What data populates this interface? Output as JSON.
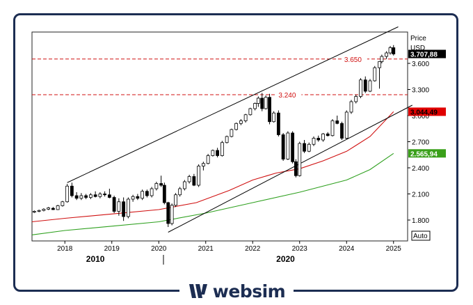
{
  "brand": {
    "name": "websim",
    "logo_icon": "websim-w-logo-icon"
  },
  "colors": {
    "frame": "#1c2d52",
    "candle": "#000000",
    "ma_fast": "#d01010",
    "ma_slow": "#2ea01e",
    "level": "#d01010",
    "last_tag": "#000000",
    "ma_fast_tag": "#e00000",
    "ma_slow_tag": "#3aa01a"
  },
  "chart_data": {
    "type": "candlestick",
    "x_unit": "year",
    "xlim": [
      2017.3,
      2025.3
    ],
    "ylim": [
      1560,
      3960
    ],
    "y_axis": {
      "title": "Price",
      "unit": "USD",
      "ticks": [
        1800,
        2100,
        2400,
        2700,
        3000,
        3300,
        3600
      ],
      "tick_labels": [
        "1.800",
        "2.100",
        "2.400",
        "2.700",
        "3.000",
        "3.300",
        "3.600"
      ]
    },
    "x_axis": {
      "ticks": [
        2018,
        2019,
        2020,
        2021,
        2022,
        2023,
        2024,
        2025
      ],
      "tick_labels": [
        "2018",
        "2019",
        "2020",
        "2021",
        "2022",
        "2023",
        "2024",
        "2025"
      ]
    },
    "era_labels": [
      {
        "text": "2010",
        "x": 2018.65
      },
      {
        "text": "2020",
        "x": 2022.7
      }
    ],
    "era_divider_x": 2020.1,
    "grid": false,
    "scale_button": "Auto",
    "candles": [
      [
        2017.35,
        1890,
        1910,
        1880,
        1900
      ],
      [
        2017.45,
        1900,
        1920,
        1890,
        1910
      ],
      [
        2017.55,
        1910,
        1935,
        1900,
        1925
      ],
      [
        2017.65,
        1925,
        1950,
        1915,
        1940
      ],
      [
        2017.75,
        1935,
        1950,
        1915,
        1920
      ],
      [
        2017.85,
        1920,
        1975,
        1915,
        1965
      ],
      [
        2017.95,
        1965,
        2020,
        1955,
        2010
      ],
      [
        2018.05,
        2010,
        2215,
        2000,
        2190
      ],
      [
        2018.15,
        2190,
        2230,
        2060,
        2080
      ],
      [
        2018.25,
        2080,
        2120,
        2030,
        2050
      ],
      [
        2018.35,
        2050,
        2110,
        2030,
        2080
      ],
      [
        2018.45,
        2080,
        2100,
        2040,
        2060
      ],
      [
        2018.55,
        2060,
        2110,
        2040,
        2090
      ],
      [
        2018.65,
        2090,
        2130,
        2060,
        2070
      ],
      [
        2018.75,
        2070,
        2120,
        2050,
        2100
      ],
      [
        2018.85,
        2100,
        2130,
        2070,
        2090
      ],
      [
        2018.95,
        2090,
        2160,
        2050,
        2060
      ],
      [
        2019.05,
        2060,
        2080,
        1880,
        1900
      ],
      [
        2019.15,
        1900,
        2050,
        1850,
        2010
      ],
      [
        2019.25,
        2010,
        2060,
        1790,
        1840
      ],
      [
        2019.35,
        1840,
        2060,
        1820,
        2040
      ],
      [
        2019.45,
        2040,
        2090,
        2010,
        2070
      ],
      [
        2019.55,
        2070,
        2100,
        2030,
        2050
      ],
      [
        2019.65,
        2050,
        2150,
        2030,
        2130
      ],
      [
        2019.75,
        2130,
        2150,
        2060,
        2080
      ],
      [
        2019.85,
        2080,
        2180,
        2060,
        2160
      ],
      [
        2019.95,
        2160,
        2240,
        2140,
        2220
      ],
      [
        2020.05,
        2220,
        2310,
        2180,
        2200
      ],
      [
        2020.12,
        2200,
        2230,
        1980,
        2000
      ],
      [
        2020.2,
        2000,
        2010,
        1720,
        1760
      ],
      [
        2020.28,
        1760,
        1990,
        1740,
        1970
      ],
      [
        2020.36,
        1970,
        2110,
        1950,
        2090
      ],
      [
        2020.45,
        2090,
        2180,
        2070,
        2160
      ],
      [
        2020.55,
        2160,
        2260,
        2140,
        2240
      ],
      [
        2020.65,
        2240,
        2320,
        2220,
        2300
      ],
      [
        2020.75,
        2300,
        2330,
        2190,
        2200
      ],
      [
        2020.85,
        2200,
        2440,
        2180,
        2420
      ],
      [
        2020.95,
        2420,
        2470,
        2370,
        2450
      ],
      [
        2021.05,
        2450,
        2560,
        2440,
        2540
      ],
      [
        2021.15,
        2540,
        2610,
        2530,
        2600
      ],
      [
        2021.25,
        2600,
        2630,
        2520,
        2540
      ],
      [
        2021.35,
        2540,
        2710,
        2530,
        2690
      ],
      [
        2021.45,
        2690,
        2770,
        2680,
        2760
      ],
      [
        2021.55,
        2760,
        2850,
        2750,
        2840
      ],
      [
        2021.65,
        2840,
        2920,
        2830,
        2910
      ],
      [
        2021.75,
        2910,
        2960,
        2890,
        2940
      ],
      [
        2021.85,
        2940,
        3020,
        2920,
        3010
      ],
      [
        2021.95,
        3010,
        3090,
        3000,
        3080
      ],
      [
        2022.05,
        3080,
        3150,
        3060,
        3140
      ],
      [
        2022.12,
        3140,
        3220,
        3100,
        3200
      ],
      [
        2022.2,
        3200,
        3260,
        3050,
        3080
      ],
      [
        2022.28,
        3080,
        3230,
        3070,
        3210
      ],
      [
        2022.36,
        3210,
        3250,
        2900,
        2930
      ],
      [
        2022.45,
        2930,
        3050,
        2920,
        3030
      ],
      [
        2022.55,
        3030,
        3060,
        2760,
        2780
      ],
      [
        2022.65,
        2780,
        2800,
        2480,
        2500
      ],
      [
        2022.75,
        2500,
        2820,
        2490,
        2800
      ],
      [
        2022.85,
        2800,
        2820,
        2450,
        2470
      ],
      [
        2022.92,
        2470,
        2500,
        2290,
        2310
      ],
      [
        2023.0,
        2310,
        2700,
        2300,
        2680
      ],
      [
        2023.1,
        2680,
        2720,
        2570,
        2590
      ],
      [
        2023.2,
        2590,
        2690,
        2580,
        2670
      ],
      [
        2023.3,
        2670,
        2760,
        2650,
        2740
      ],
      [
        2023.4,
        2740,
        2770,
        2700,
        2720
      ],
      [
        2023.5,
        2720,
        2800,
        2700,
        2790
      ],
      [
        2023.6,
        2790,
        2810,
        2760,
        2770
      ],
      [
        2023.7,
        2770,
        2960,
        2760,
        2940
      ],
      [
        2023.8,
        2940,
        3000,
        2900,
        2910
      ],
      [
        2023.9,
        2910,
        2930,
        2720,
        2740
      ],
      [
        2024.0,
        2740,
        3060,
        2730,
        3040
      ],
      [
        2024.1,
        3040,
        3180,
        3020,
        3160
      ],
      [
        2024.2,
        3160,
        3240,
        3140,
        3220
      ],
      [
        2024.3,
        3220,
        3430,
        3200,
        3410
      ],
      [
        2024.4,
        3410,
        3450,
        3260,
        3280
      ],
      [
        2024.5,
        3280,
        3420,
        3270,
        3400
      ],
      [
        2024.6,
        3400,
        3570,
        3390,
        3550
      ],
      [
        2024.7,
        3550,
        3600,
        3310,
        3620
      ],
      [
        2024.75,
        3620,
        3700,
        3600,
        3680
      ],
      [
        2024.85,
        3680,
        3740,
        3650,
        3720
      ],
      [
        2024.93,
        3720,
        3800,
        3700,
        3780
      ],
      [
        2025.0,
        3780,
        3810,
        3690,
        3707.88
      ]
    ],
    "series": [
      {
        "line_type": "moving-average",
        "color": "#d01010",
        "last_value": 3044.49,
        "last_label": "3.044,49",
        "x": [
          2017.3,
          2018.0,
          2019.0,
          2020.0,
          2020.8,
          2021.5,
          2022.0,
          2022.5,
          2023.0,
          2023.5,
          2024.0,
          2024.5,
          2025.0
        ],
        "y": [
          1780,
          1820,
          1870,
          1920,
          2000,
          2140,
          2260,
          2340,
          2390,
          2480,
          2590,
          2760,
          3044.49
        ]
      },
      {
        "line_type": "moving-average",
        "color": "#2ea01e",
        "last_value": 2565.94,
        "last_label": "2.565,94",
        "x": [
          2017.3,
          2018.0,
          2019.0,
          2020.0,
          2021.0,
          2022.0,
          2023.0,
          2024.0,
          2024.5,
          2025.0
        ],
        "y": [
          1630,
          1680,
          1730,
          1780,
          1880,
          2000,
          2120,
          2260,
          2380,
          2565.94
        ]
      }
    ],
    "trend_lines": [
      {
        "x1": 2018.05,
        "y1": 2230,
        "x2": 2025.1,
        "y2": 4020
      },
      {
        "x1": 2020.2,
        "y1": 1660,
        "x2": 2025.4,
        "y2": 3120
      }
    ],
    "levels": [
      {
        "value": 3650,
        "label": "3.650",
        "label_x": 2023.95
      },
      {
        "value": 3240,
        "label": "3.240",
        "label_x": 2022.55
      }
    ],
    "last_price": {
      "value": 3707.88,
      "label": "3.707,88"
    }
  }
}
